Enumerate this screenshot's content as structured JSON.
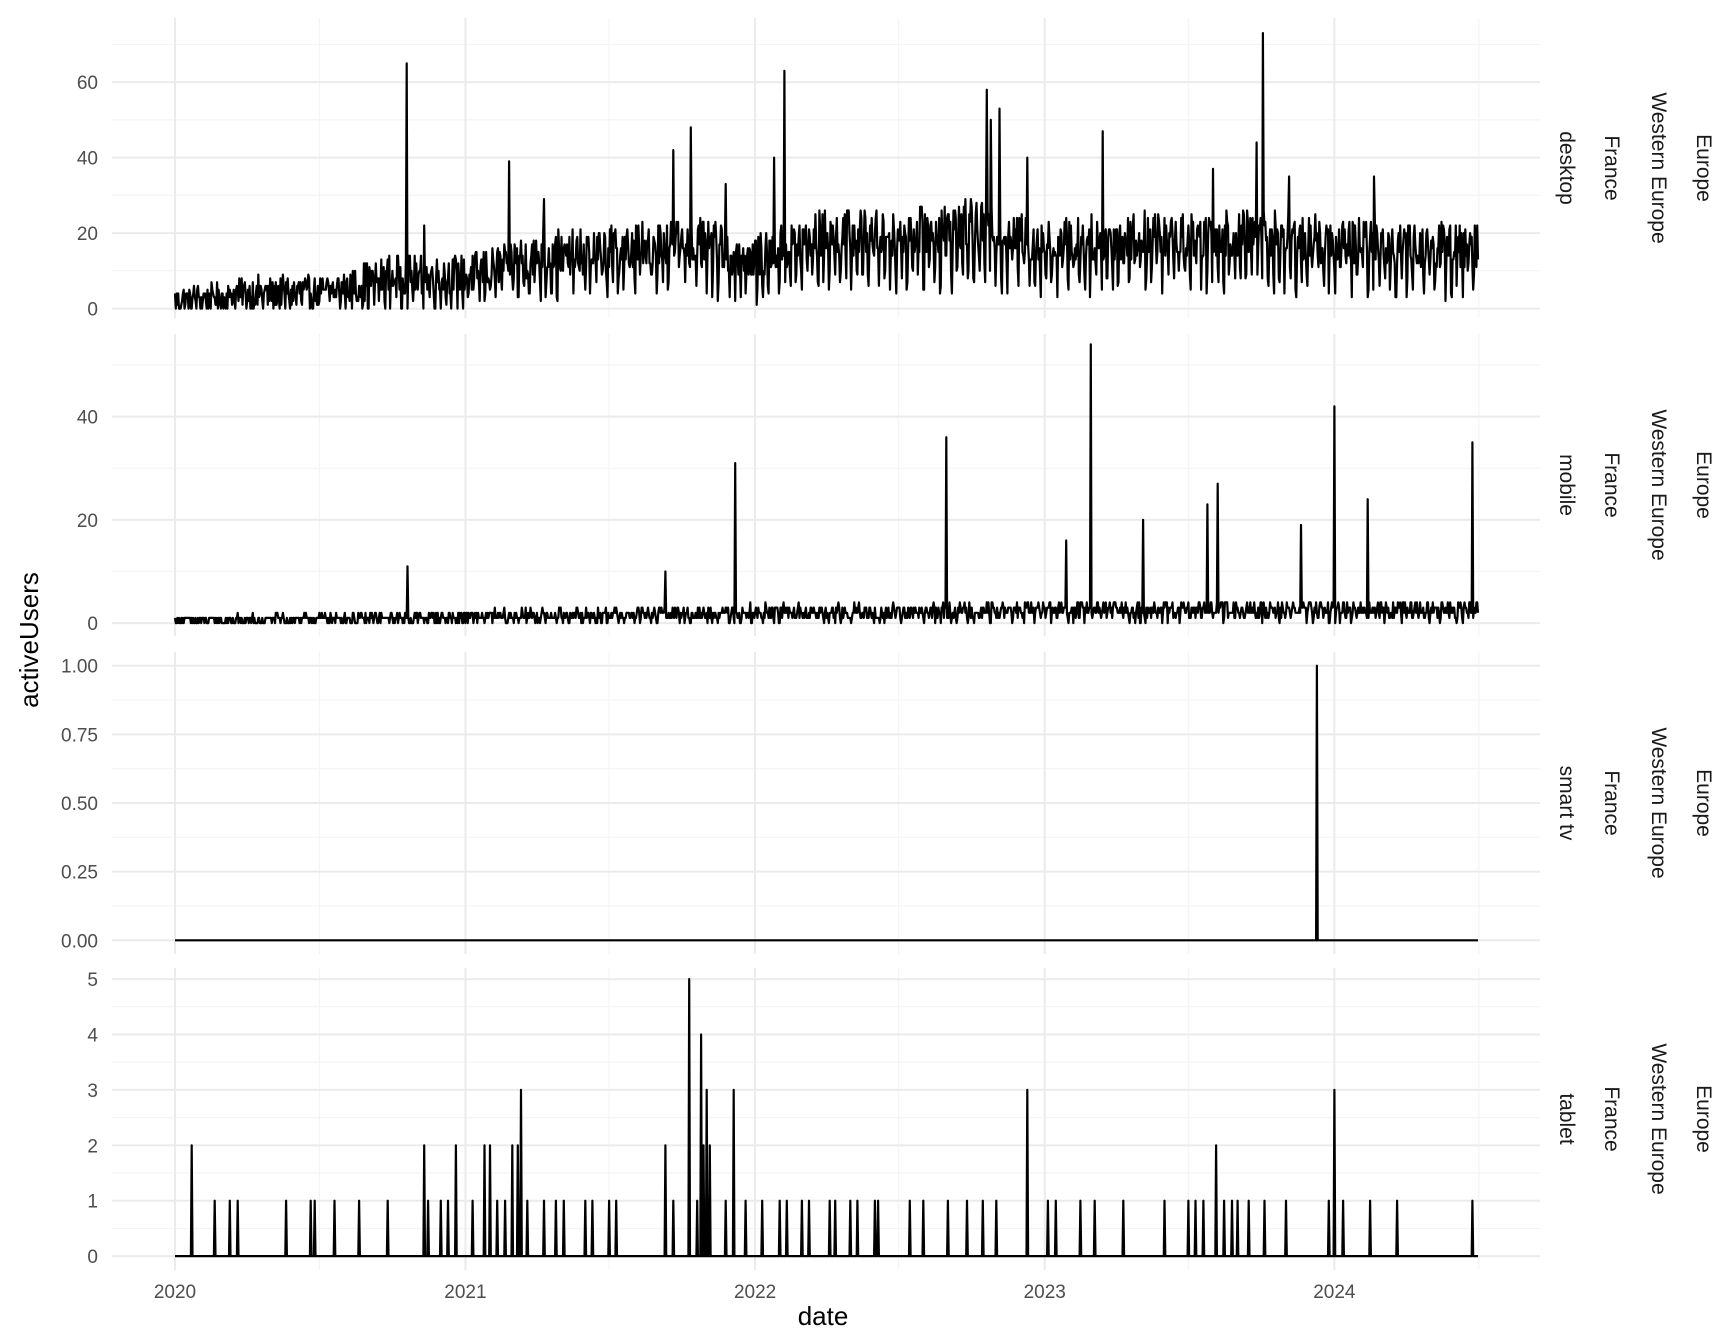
{
  "chart_data": {
    "type": "line",
    "xlabel": "date",
    "ylabel": "activeUsers",
    "x_tick_labels": [
      "2020",
      "2021",
      "2022",
      "2023",
      "2024"
    ],
    "x_range": [
      "2020-01-01",
      "2024-06-30"
    ],
    "grid": true,
    "colors": {
      "line": "#000000",
      "grid_major": "#ebebeb",
      "grid_minor": "#f4f4f4",
      "background": "#ffffff"
    },
    "panels": [
      {
        "strips": [
          "desktop",
          "France",
          "Western Europe",
          "Europe"
        ],
        "ylim": [
          -2.5,
          77
        ],
        "y_ticks": [
          0,
          20,
          40,
          60
        ],
        "y_tick_labels": [
          "0",
          "20",
          "40",
          "60"
        ],
        "baseline": [
          [
            "2020-01-01",
            2
          ],
          [
            "2020-04-01",
            4
          ],
          [
            "2020-07-01",
            4
          ],
          [
            "2020-10-01",
            8
          ],
          [
            "2021-01-01",
            8
          ],
          [
            "2021-04-01",
            13
          ],
          [
            "2021-07-01",
            14
          ],
          [
            "2021-10-01",
            17
          ],
          [
            "2022-01-01",
            12
          ],
          [
            "2022-04-01",
            18
          ],
          [
            "2022-07-01",
            18
          ],
          [
            "2022-10-01",
            20
          ],
          [
            "2023-01-01",
            16
          ],
          [
            "2023-04-01",
            17
          ],
          [
            "2023-07-01",
            18
          ],
          [
            "2023-10-01",
            18
          ],
          [
            "2024-01-01",
            16
          ],
          [
            "2024-06-30",
            15
          ]
        ],
        "noise": 6,
        "spikes": [
          [
            "2020-10-19",
            65
          ],
          [
            "2020-11-10",
            22
          ],
          [
            "2021-02-25",
            39
          ],
          [
            "2021-04-10",
            29
          ],
          [
            "2021-09-20",
            42
          ],
          [
            "2021-10-12",
            48
          ],
          [
            "2021-11-25",
            33
          ],
          [
            "2022-02-07",
            63
          ],
          [
            "2022-01-25",
            40
          ],
          [
            "2022-10-20",
            58
          ],
          [
            "2022-10-25",
            50
          ],
          [
            "2022-11-05",
            53
          ],
          [
            "2022-12-10",
            40
          ],
          [
            "2023-03-15",
            47
          ],
          [
            "2023-08-01",
            37
          ],
          [
            "2023-09-25",
            44
          ],
          [
            "2023-10-03",
            73
          ],
          [
            "2023-11-05",
            35
          ],
          [
            "2024-02-20",
            35
          ]
        ]
      },
      {
        "strips": [
          "mobile",
          "France",
          "Western Europe",
          "Europe"
        ],
        "ylim": [
          -2.5,
          56
        ],
        "y_ticks": [
          0,
          20,
          40
        ],
        "y_tick_labels": [
          "0",
          "20",
          "40"
        ],
        "baseline": [
          [
            "2020-01-01",
            0.4
          ],
          [
            "2020-10-01",
            1
          ],
          [
            "2021-01-01",
            1.2
          ],
          [
            "2021-07-01",
            1.5
          ],
          [
            "2022-01-01",
            2
          ],
          [
            "2022-07-01",
            2
          ],
          [
            "2023-01-01",
            2.5
          ],
          [
            "2024-06-30",
            2.5
          ]
        ],
        "noise": 2.5,
        "spikes": [
          [
            "2020-10-20",
            11
          ],
          [
            "2021-09-10",
            10
          ],
          [
            "2021-12-07",
            31
          ],
          [
            "2022-08-30",
            36
          ],
          [
            "2023-01-28",
            16
          ],
          [
            "2023-02-28",
            54
          ],
          [
            "2023-05-05",
            20
          ],
          [
            "2023-07-25",
            23
          ],
          [
            "2023-08-07",
            27
          ],
          [
            "2023-11-20",
            19
          ],
          [
            "2024-01-01",
            42
          ],
          [
            "2024-02-12",
            24
          ],
          [
            "2024-06-23",
            35
          ]
        ]
      },
      {
        "strips": [
          "smart tv",
          "France",
          "Western Europe",
          "Europe"
        ],
        "ylim": [
          -0.05,
          1.05
        ],
        "y_ticks": [
          0,
          0.25,
          0.5,
          0.75,
          1
        ],
        "y_tick_labels": [
          "0.00",
          "0.25",
          "0.50",
          "0.75",
          "1.00"
        ],
        "baseline": [
          [
            "2020-01-01",
            0
          ],
          [
            "2024-06-30",
            0
          ]
        ],
        "noise": 0,
        "spikes": [
          [
            "2023-12-10",
            1
          ]
        ]
      },
      {
        "strips": [
          "tablet",
          "France",
          "Western Europe",
          "Europe"
        ],
        "ylim": [
          -0.25,
          5.2
        ],
        "y_ticks": [
          0,
          1,
          2,
          3,
          4,
          5
        ],
        "y_tick_labels": [
          "0",
          "1",
          "2",
          "3",
          "4",
          "5"
        ],
        "baseline": [
          [
            "2020-01-01",
            0
          ],
          [
            "2024-06-30",
            0
          ]
        ],
        "noise": 0,
        "spikes": [
          [
            "2020-01-22",
            2
          ],
          [
            "2020-02-20",
            1
          ],
          [
            "2020-03-10",
            1
          ],
          [
            "2020-03-20",
            1
          ],
          [
            "2020-05-20",
            1
          ],
          [
            "2020-06-20",
            1
          ],
          [
            "2020-06-25",
            1
          ],
          [
            "2020-07-20",
            1
          ],
          [
            "2020-08-20",
            1
          ],
          [
            "2020-09-25",
            1
          ],
          [
            "2020-11-10",
            2
          ],
          [
            "2020-11-15",
            1
          ],
          [
            "2020-12-01",
            1
          ],
          [
            "2020-12-10",
            1
          ],
          [
            "2020-12-20",
            2
          ],
          [
            "2021-01-10",
            1
          ],
          [
            "2021-01-25",
            2
          ],
          [
            "2021-02-01",
            2
          ],
          [
            "2021-02-10",
            1
          ],
          [
            "2021-02-20",
            1
          ],
          [
            "2021-03-01",
            2
          ],
          [
            "2021-03-08",
            2
          ],
          [
            "2021-03-12",
            3
          ],
          [
            "2021-03-20",
            1
          ],
          [
            "2021-04-10",
            1
          ],
          [
            "2021-04-25",
            1
          ],
          [
            "2021-05-05",
            1
          ],
          [
            "2021-06-01",
            1
          ],
          [
            "2021-06-10",
            1
          ],
          [
            "2021-07-01",
            1
          ],
          [
            "2021-07-10",
            1
          ],
          [
            "2021-09-10",
            2
          ],
          [
            "2021-09-20",
            1
          ],
          [
            "2021-10-10",
            5
          ],
          [
            "2021-10-20",
            1
          ],
          [
            "2021-10-25",
            4
          ],
          [
            "2021-10-28",
            2
          ],
          [
            "2021-11-01",
            3
          ],
          [
            "2021-11-05",
            2
          ],
          [
            "2021-11-25",
            1
          ],
          [
            "2021-12-05",
            3
          ],
          [
            "2021-12-20",
            1
          ],
          [
            "2022-01-10",
            1
          ],
          [
            "2022-02-01",
            1
          ],
          [
            "2022-02-10",
            1
          ],
          [
            "2022-03-01",
            1
          ],
          [
            "2022-03-10",
            1
          ],
          [
            "2022-04-05",
            1
          ],
          [
            "2022-04-12",
            1
          ],
          [
            "2022-05-01",
            1
          ],
          [
            "2022-05-10",
            1
          ],
          [
            "2022-06-01",
            1
          ],
          [
            "2022-06-05",
            1
          ],
          [
            "2022-07-15",
            1
          ],
          [
            "2022-08-01",
            1
          ],
          [
            "2022-09-01",
            1
          ],
          [
            "2022-09-25",
            1
          ],
          [
            "2022-10-15",
            1
          ],
          [
            "2022-11-01",
            1
          ],
          [
            "2022-12-10",
            3
          ],
          [
            "2023-01-05",
            1
          ],
          [
            "2023-01-15",
            1
          ],
          [
            "2023-02-15",
            1
          ],
          [
            "2023-03-05",
            1
          ],
          [
            "2023-04-10",
            1
          ],
          [
            "2023-06-01",
            1
          ],
          [
            "2023-07-01",
            1
          ],
          [
            "2023-07-10",
            1
          ],
          [
            "2023-07-20",
            1
          ],
          [
            "2023-08-05",
            2
          ],
          [
            "2023-08-15",
            1
          ],
          [
            "2023-08-25",
            1
          ],
          [
            "2023-09-01",
            1
          ],
          [
            "2023-09-15",
            1
          ],
          [
            "2023-10-05",
            1
          ],
          [
            "2023-11-01",
            1
          ],
          [
            "2023-12-25",
            1
          ],
          [
            "2024-01-01",
            3
          ],
          [
            "2024-01-12",
            1
          ],
          [
            "2024-02-15",
            1
          ],
          [
            "2024-03-20",
            1
          ],
          [
            "2024-06-23",
            1
          ]
        ]
      }
    ]
  }
}
